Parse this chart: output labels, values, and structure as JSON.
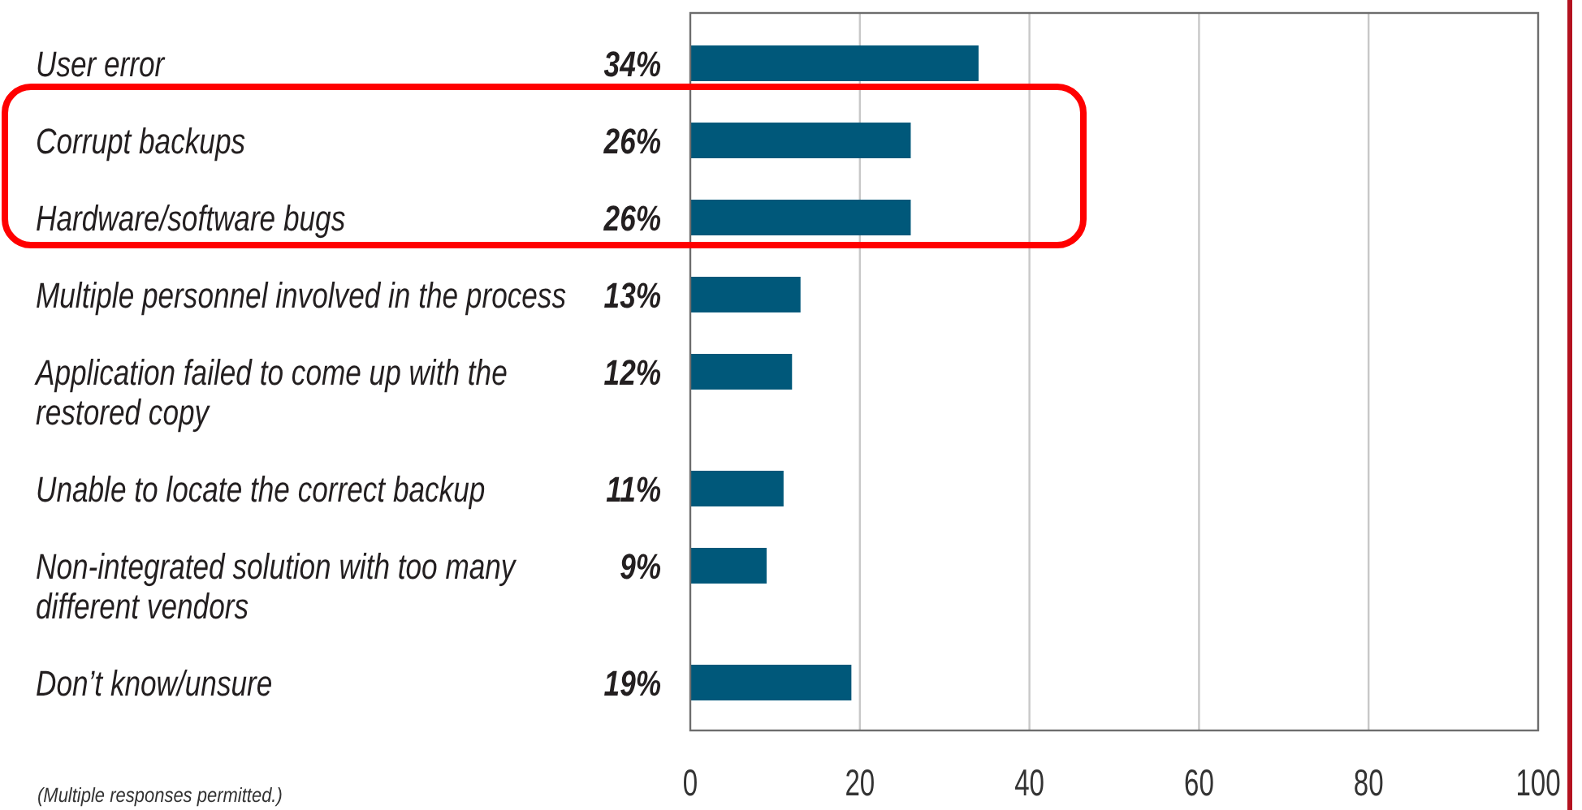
{
  "chart_data": {
    "type": "bar",
    "orientation": "horizontal",
    "categories": [
      "User error",
      "Corrupt backups",
      "Hardware/software bugs",
      "Multiple personnel involved in the process",
      "Application failed to come up with the restored copy",
      "Unable to locate the correct backup",
      "Non-integrated solution with too many different vendors",
      "Don’t know/unsure"
    ],
    "values": [
      34,
      26,
      26,
      13,
      12,
      11,
      9,
      19
    ],
    "value_labels": [
      "34%",
      "26%",
      "26%",
      "13%",
      "12%",
      "11%",
      "9%",
      "19%"
    ],
    "color": "#00587a",
    "xlim": [
      0,
      100
    ],
    "xticks": [
      0,
      20,
      40,
      60,
      80,
      100
    ],
    "grid": "x",
    "annotations": [
      "(Multiple responses permitted.)"
    ]
  }
}
